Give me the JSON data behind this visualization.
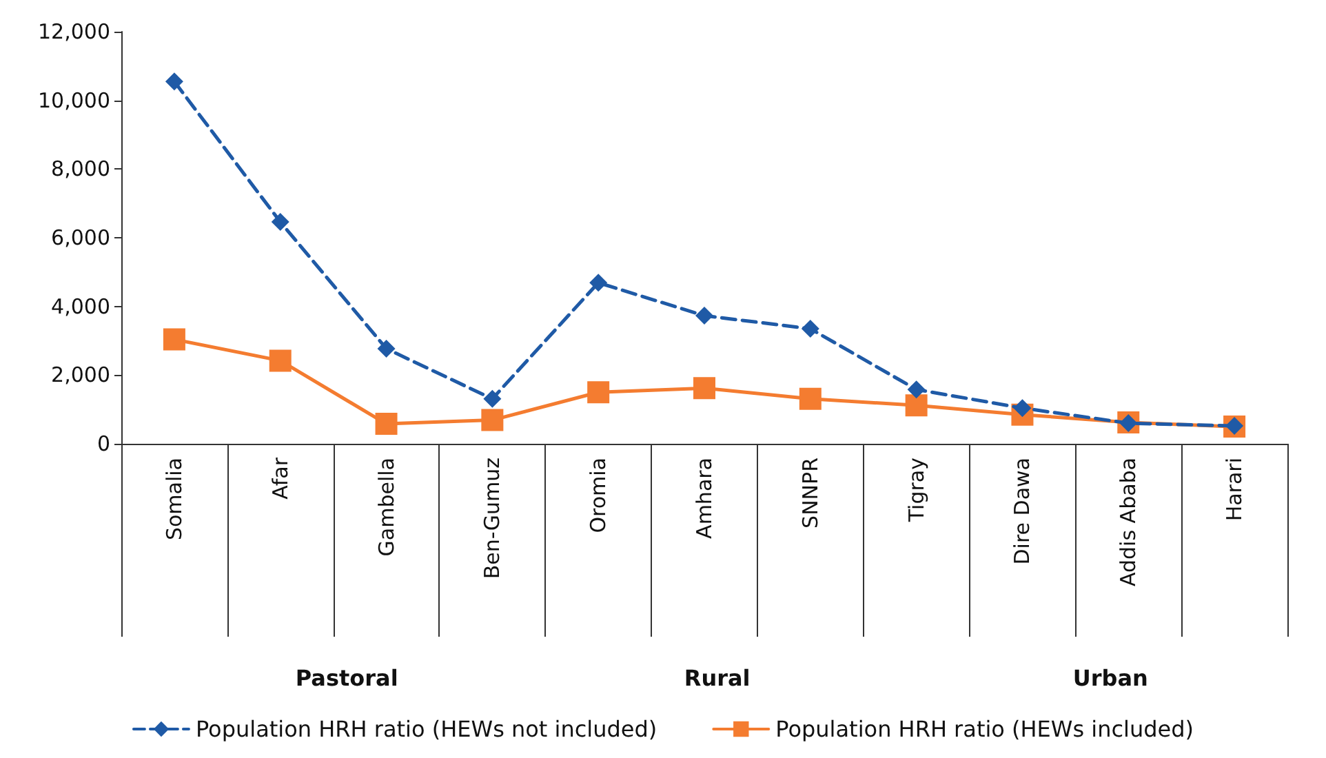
{
  "chart_data": {
    "type": "line",
    "categories": [
      "Somalia",
      "Afar",
      "Gambella",
      "Ben-Gumuz",
      "Oromia",
      "Amhara",
      "SNNPR",
      "Tigray",
      "Dire Dawa",
      "Addis Ababa",
      "Harari"
    ],
    "series": [
      {
        "name": "Population HRH ratio (HEWs not included)",
        "color": "#1f5aa6",
        "marker": "diamond",
        "line_style": "dashed",
        "values": [
          10550,
          6460,
          2770,
          1310,
          4690,
          3730,
          3350,
          1580,
          1040,
          600,
          520
        ]
      },
      {
        "name": "Population HRH ratio (HEWs included)",
        "color": "#f47c30",
        "marker": "square",
        "line_style": "solid",
        "values": [
          3040,
          2420,
          580,
          690,
          1500,
          1620,
          1310,
          1120,
          850,
          620,
          500
        ]
      }
    ],
    "ylim": [
      0,
      12000
    ],
    "yticks": [
      {
        "value": 0,
        "label": "0"
      },
      {
        "value": 2000,
        "label": "2,000"
      },
      {
        "value": 4000,
        "label": "4,000"
      },
      {
        "value": 6000,
        "label": "6,000"
      },
      {
        "value": 8000,
        "label": "8,000"
      },
      {
        "value": 10000,
        "label": "10,000"
      },
      {
        "value": 12000,
        "label": "12,000"
      }
    ],
    "annotations": [
      "Pastoral",
      "Rural",
      "Urban"
    ],
    "grid": false,
    "legend": "bottom"
  }
}
